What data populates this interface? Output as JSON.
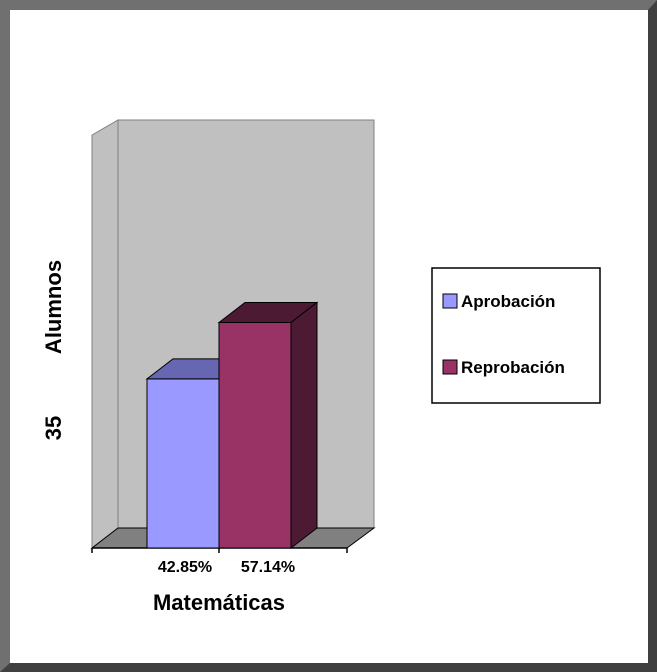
{
  "chart_data": {
    "type": "bar",
    "three_d": true,
    "categories": [
      "Matemáticas"
    ],
    "xlabel": "Matemáticas",
    "ylabel": "Alumnos",
    "y_side_label": "35",
    "ylim": [
      0,
      100
    ],
    "grid": false,
    "legend_position": "right",
    "series": [
      {
        "name": "Aprobación",
        "values": [
          42.85
        ],
        "data_label": "42.85%",
        "color": "#9999ff",
        "dark_color": "#6666b2"
      },
      {
        "name": "Reprobación",
        "values": [
          57.14
        ],
        "data_label": "57.14%",
        "color": "#993366",
        "dark_color": "#4d1a33"
      }
    ],
    "wall_color": "#c0c0c0",
    "floor_color": "#808080"
  }
}
